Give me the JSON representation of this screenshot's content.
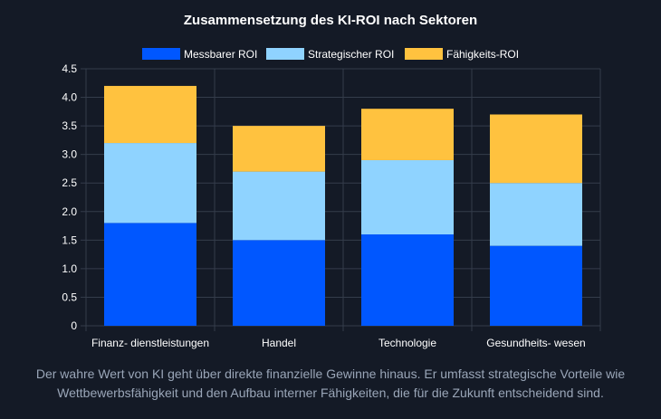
{
  "chart_data": {
    "type": "bar",
    "stacked": true,
    "title": "Zusammensetzung des KI-ROI nach Sektoren",
    "categories": [
      "Finanz- dienstleistungen",
      "Handel",
      "Technologie",
      "Gesundheits- wesen"
    ],
    "series": [
      {
        "name": "Messbarer ROI",
        "color": "#0057ff",
        "values": [
          1.8,
          1.5,
          1.6,
          1.4
        ]
      },
      {
        "name": "Strategischer ROI",
        "color": "#8fd3ff",
        "values": [
          1.4,
          1.2,
          1.3,
          1.1
        ]
      },
      {
        "name": "Fähigkeits-ROI",
        "color": "#ffc23f",
        "values": [
          1.0,
          0.8,
          0.9,
          1.2
        ]
      }
    ],
    "ylim": [
      0,
      4.5
    ],
    "yticks": [
      "0",
      "0.5",
      "1.0",
      "1.5",
      "2.0",
      "2.5",
      "3.0",
      "3.5",
      "4.0",
      "4.5"
    ],
    "xlabel": "",
    "ylabel": "",
    "grid": true,
    "legend_position": "top"
  },
  "caption": "Der wahre Wert von KI geht über direkte finanzielle Gewinne hinaus. Er umfasst strategische Vorteile wie Wettbewerbsfähigkeit und den Aufbau interner Fähigkeiten, die für die Zukunft entscheidend sind.",
  "colors": {
    "background": "#141a26",
    "grid": "#343c4b",
    "caption": "#9aa6b8"
  }
}
